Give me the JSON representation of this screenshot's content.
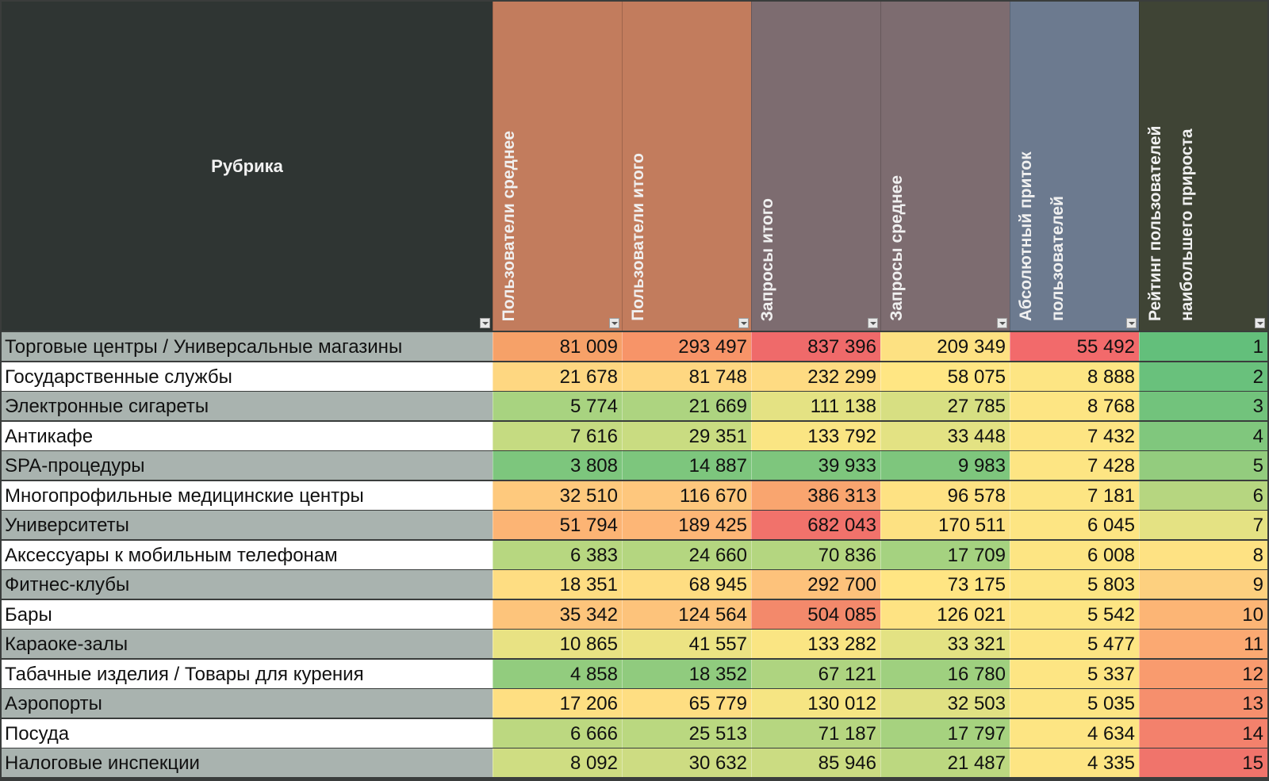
{
  "header": {
    "rubrika": "Рубрика",
    "columns": [
      {
        "label": "Пользователи среднее",
        "color": "#c27c5d"
      },
      {
        "label": "Пользователи итого",
        "color": "#c27c5d"
      },
      {
        "label": "Запросы итого",
        "color": "#7d6c70"
      },
      {
        "label": "Запросы среднее",
        "color": "#7d6c70"
      },
      {
        "label": "Абсолютный приток пользователей",
        "color": "#6c7a8f"
      },
      {
        "label": "Рейтинг пользователей наибольшего прироста",
        "color": "#3f4435"
      }
    ]
  },
  "rows": [
    {
      "name": "Торговые центры / Универсальные магазины",
      "values": [
        "81 009",
        "293 497",
        "837 396",
        "209 349",
        "55 492",
        "1"
      ],
      "colors": [
        "#f6a168",
        "#f79468",
        "#ef6a6a",
        "#fde182",
        "#f26a6b",
        "#63bf7b"
      ]
    },
    {
      "name": "Государственные службы",
      "values": [
        "21 678",
        "81 748",
        "232 299",
        "58 075",
        "8 888",
        "2"
      ],
      "colors": [
        "#fed781",
        "#fed781",
        "#fedb82",
        "#ffe683",
        "#fde583",
        "#69c17c"
      ]
    },
    {
      "name": "Электронные сигареты",
      "values": [
        "5 774",
        "21 669",
        "111 138",
        "27 785",
        "8 768",
        "3"
      ],
      "colors": [
        "#a8d380",
        "#add480",
        "#e4e283",
        "#d7df82",
        "#fde583",
        "#72c37c"
      ]
    },
    {
      "name": "Антикафе",
      "values": [
        "7 616",
        "29 351",
        "133 792",
        "33 448",
        "7 432",
        "4"
      ],
      "colors": [
        "#c5db81",
        "#c9dc81",
        "#fae583",
        "#e3e283",
        "#fde583",
        "#80c77d"
      ]
    },
    {
      "name": "SPA-процедуры",
      "values": [
        "3 808",
        "14 887",
        "39 933",
        "9 983",
        "7 428",
        "5"
      ],
      "colors": [
        "#7dc67d",
        "#7dc67d",
        "#7ec67d",
        "#7ec67d",
        "#fde583",
        "#93cc7e"
      ]
    },
    {
      "name": "Многопрофильные медицинские центры",
      "values": [
        "32 510",
        "116 670",
        "386 313",
        "96 578",
        "7 181",
        "6"
      ],
      "colors": [
        "#fec97d",
        "#fec77d",
        "#f9a56f",
        "#fee283",
        "#fde583",
        "#b6d680"
      ]
    },
    {
      "name": "Университеты",
      "values": [
        "51 794",
        "189 425",
        "682 043",
        "170 511",
        "6 045",
        "7"
      ],
      "colors": [
        "#fcb474",
        "#fdb676",
        "#f1726b",
        "#fde182",
        "#fde583",
        "#e4e283"
      ]
    },
    {
      "name": "Аксессуары к мобильным телефонам",
      "values": [
        "6 383",
        "24 660",
        "70 836",
        "17 709",
        "6 008",
        "8"
      ],
      "colors": [
        "#b7d780",
        "#b4d680",
        "#b4d680",
        "#a5d280",
        "#fde583",
        "#fee283"
      ]
    },
    {
      "name": "Фитнес-клубы",
      "values": [
        "18 351",
        "68 945",
        "292 700",
        "73 175",
        "5 803",
        "9"
      ],
      "colors": [
        "#fedd82",
        "#fedd82",
        "#fdc27b",
        "#ffe583",
        "#fde583",
        "#fdd07f"
      ]
    },
    {
      "name": "Бары",
      "values": [
        "35 342",
        "124 564",
        "504 085",
        "126 021",
        "5 542",
        "10"
      ],
      "colors": [
        "#fdc47b",
        "#fdc37b",
        "#f3896b",
        "#fee383",
        "#fde583",
        "#fcb575"
      ]
    },
    {
      "name": "Караоке-залы",
      "values": [
        "10 865",
        "41 557",
        "133 282",
        "33 321",
        "5 477",
        "11"
      ],
      "colors": [
        "#e8e283",
        "#ece383",
        "#fae583",
        "#e3e283",
        "#fde583",
        "#fba972"
      ]
    },
    {
      "name": "Табачные изделия / Товары для курения",
      "values": [
        "4 858",
        "18 352",
        "67 121",
        "16 780",
        "5 337",
        "12"
      ],
      "colors": [
        "#92cc7e",
        "#90cb7e",
        "#aed480",
        "#9fd07f",
        "#fde583",
        "#f99b6e"
      ]
    },
    {
      "name": "Аэропорты",
      "values": [
        "17 206",
        "65 779",
        "130 012",
        "32 503",
        "5 035",
        "13"
      ],
      "colors": [
        "#fedf82",
        "#fede82",
        "#f6e583",
        "#e0e183",
        "#fde583",
        "#f68f6d"
      ]
    },
    {
      "name": "Посуда",
      "values": [
        "6 666",
        "25 513",
        "71 187",
        "17 797",
        "4 634",
        "14"
      ],
      "colors": [
        "#bcd880",
        "#bad880",
        "#b6d680",
        "#a6d27f",
        "#fde583",
        "#f3816c"
      ]
    },
    {
      "name": "Налоговые инспекции",
      "values": [
        "8 092",
        "30 632",
        "85 946",
        "21 487",
        "4 335",
        "15"
      ],
      "colors": [
        "#cfdd82",
        "#cddc82",
        "#cbdc82",
        "#bcd880",
        "#fde583",
        "#f0746b"
      ]
    }
  ]
}
